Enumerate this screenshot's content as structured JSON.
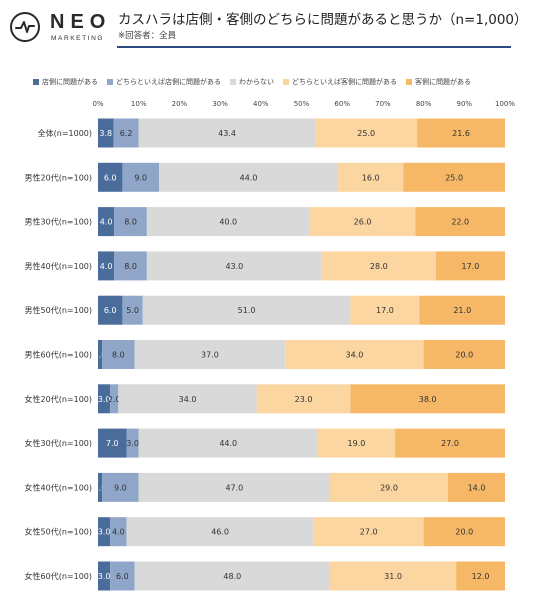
{
  "logo": {
    "name": "NEO",
    "sub": "MARKETING"
  },
  "header": {
    "title": "カスハラは店側・客側のどちらに問題があると思うか（n=1,000）",
    "subtitle": "※回答者：全員"
  },
  "chart_data": {
    "type": "bar",
    "orientation": "horizontal",
    "stacked": "100%",
    "categories": [
      "全体(n=1000)",
      "男性20代(n=100)",
      "男性30代(n=100)",
      "男性40代(n=100)",
      "男性50代(n=100)",
      "男性60代(n=100)",
      "女性20代(n=100)",
      "女性30代(n=100)",
      "女性40代(n=100)",
      "女性50代(n=100)",
      "女性60代(n=100)"
    ],
    "x_ticks": [
      "0%",
      "10%",
      "20%",
      "30%",
      "40%",
      "50%",
      "60%",
      "70%",
      "80%",
      "90%",
      "100%"
    ],
    "xlim": [
      0,
      100
    ],
    "legend_position": "top",
    "series": [
      {
        "name": "店側に問題がある",
        "color": "#4a6c9b",
        "label_color": "#ffffff",
        "values": [
          3.8,
          6.0,
          4.0,
          4.0,
          6.0,
          1.0,
          3.0,
          7.0,
          1.0,
          3.0,
          3.0
        ]
      },
      {
        "name": "どちらといえば店側に問題がある",
        "color": "#8fa6c8",
        "label_color": "#333333",
        "values": [
          6.2,
          9.0,
          8.0,
          8.0,
          5.0,
          8.0,
          2.0,
          3.0,
          9.0,
          4.0,
          6.0
        ]
      },
      {
        "name": "わからない",
        "color": "#d9d9d9",
        "label_color": "#333333",
        "values": [
          43.4,
          44.0,
          40.0,
          43.0,
          51.0,
          37.0,
          34.0,
          44.0,
          47.0,
          46.0,
          48.0
        ]
      },
      {
        "name": "どちらといえば客側に問題がある",
        "color": "#fbd6a0",
        "label_color": "#333333",
        "values": [
          25.0,
          16.0,
          26.0,
          28.0,
          17.0,
          34.0,
          23.0,
          19.0,
          29.0,
          27.0,
          31.0
        ]
      },
      {
        "name": "客側に問題がある",
        "color": "#f6b867",
        "label_color": "#333333",
        "values": [
          21.6,
          25.0,
          22.0,
          17.0,
          21.0,
          20.0,
          38.0,
          27.0,
          14.0,
          20.0,
          12.0
        ]
      }
    ]
  }
}
